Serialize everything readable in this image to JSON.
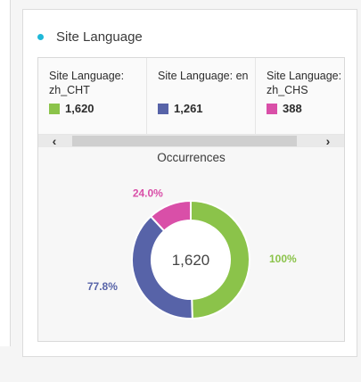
{
  "card": {
    "title": "Site Language",
    "dot_color": "#1fb8d8"
  },
  "summary": [
    {
      "label": "Site Language: zh_CHT",
      "value": "1,620",
      "color": "#8bc34a"
    },
    {
      "label": "Site Language: en",
      "value": "1,261",
      "color": "#5763a8"
    },
    {
      "label": "Site Language: zh_CHS",
      "value": "388",
      "color": "#d94fa8"
    }
  ],
  "scroll": {
    "left_arrow": "‹",
    "right_arrow": "›"
  },
  "chart_data": {
    "type": "donut",
    "title": "Occurrences",
    "center_label": "1,620",
    "max": 1620,
    "series": [
      {
        "name": "zh_CHT",
        "value": 1620,
        "percent_label": "100%",
        "color": "#8bc34a"
      },
      {
        "name": "en",
        "value": 1261,
        "percent_label": "77.8%",
        "color": "#5763a8"
      },
      {
        "name": "zh_CHS",
        "value": 388,
        "percent_label": "24.0%",
        "color": "#d94fa8"
      }
    ]
  }
}
